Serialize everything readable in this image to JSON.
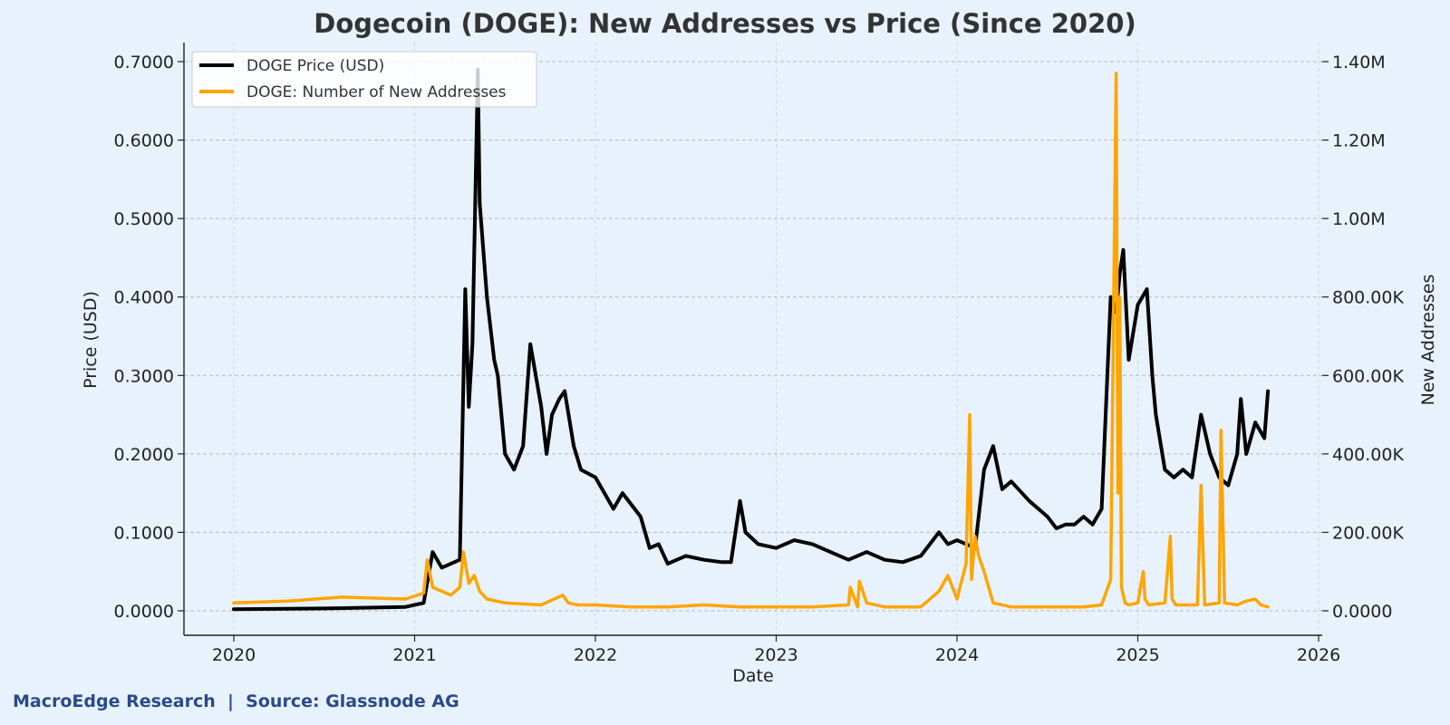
{
  "footer": "MacroEdge Research  |  Source: Glassnode AG",
  "colors": {
    "background": "#e8f2fd",
    "price": "#000000",
    "addresses": "#ffa500",
    "footer": "#2b4a8a"
  },
  "chart_data": {
    "type": "line",
    "title": "Dogecoin (DOGE): New Addresses vs Price (Since 2020)",
    "xlabel": "Date",
    "ylabel": "Price (USD)",
    "ylabel_right": "New Addresses",
    "xlim": [
      2020,
      2026
    ],
    "ylim": [
      0,
      0.7
    ],
    "ylim_right": [
      0,
      1400000
    ],
    "x_ticks": [
      "2020",
      "2021",
      "2022",
      "2023",
      "2024",
      "2025",
      "2026"
    ],
    "y_ticks": [
      "0.0000",
      "0.1000",
      "0.2000",
      "0.3000",
      "0.4000",
      "0.5000",
      "0.6000",
      "0.7000"
    ],
    "y_right_ticks": [
      "0.0000",
      "200.00K",
      "400.00K",
      "600.00K",
      "800.00K",
      "1.00M",
      "1.20M",
      "1.40M"
    ],
    "grid": true,
    "legend_position": "top-left",
    "series": [
      {
        "name": "DOGE Price (USD)",
        "axis": "left",
        "color": "#000000",
        "x": [
          2020.0,
          2020.5,
          2020.95,
          2021.05,
          2021.1,
          2021.15,
          2021.2,
          2021.25,
          2021.28,
          2021.3,
          2021.32,
          2021.35,
          2021.36,
          2021.4,
          2021.44,
          2021.46,
          2021.5,
          2021.55,
          2021.6,
          2021.64,
          2021.7,
          2021.73,
          2021.76,
          2021.8,
          2021.83,
          2021.88,
          2021.92,
          2022.0,
          2022.1,
          2022.15,
          2022.25,
          2022.3,
          2022.35,
          2022.4,
          2022.5,
          2022.6,
          2022.7,
          2022.75,
          2022.8,
          2022.83,
          2022.9,
          2023.0,
          2023.1,
          2023.2,
          2023.3,
          2023.4,
          2023.5,
          2023.6,
          2023.7,
          2023.8,
          2023.9,
          2023.95,
          2024.0,
          2024.1,
          2024.15,
          2024.2,
          2024.25,
          2024.3,
          2024.4,
          2024.5,
          2024.55,
          2024.6,
          2024.65,
          2024.7,
          2024.75,
          2024.8,
          2024.85,
          2024.88,
          2024.9,
          2024.92,
          2024.95,
          2025.0,
          2025.05,
          2025.08,
          2025.1,
          2025.15,
          2025.2,
          2025.25,
          2025.3,
          2025.35,
          2025.4,
          2025.45,
          2025.5,
          2025.55,
          2025.57,
          2025.6,
          2025.65,
          2025.7,
          2025.72
        ],
        "y": [
          0.002,
          0.003,
          0.005,
          0.01,
          0.075,
          0.055,
          0.06,
          0.065,
          0.41,
          0.26,
          0.34,
          0.69,
          0.52,
          0.4,
          0.32,
          0.3,
          0.2,
          0.18,
          0.21,
          0.34,
          0.26,
          0.2,
          0.25,
          0.27,
          0.28,
          0.21,
          0.18,
          0.17,
          0.13,
          0.15,
          0.12,
          0.08,
          0.085,
          0.06,
          0.07,
          0.065,
          0.062,
          0.062,
          0.14,
          0.1,
          0.085,
          0.08,
          0.09,
          0.085,
          0.075,
          0.065,
          0.075,
          0.065,
          0.062,
          0.07,
          0.1,
          0.085,
          0.09,
          0.08,
          0.18,
          0.21,
          0.155,
          0.165,
          0.14,
          0.12,
          0.105,
          0.11,
          0.11,
          0.12,
          0.11,
          0.13,
          0.4,
          0.38,
          0.43,
          0.46,
          0.32,
          0.39,
          0.41,
          0.3,
          0.25,
          0.18,
          0.17,
          0.18,
          0.17,
          0.25,
          0.2,
          0.17,
          0.16,
          0.2,
          0.27,
          0.2,
          0.24,
          0.22,
          0.28
        ]
      },
      {
        "name": "DOGE: Number of New Addresses",
        "axis": "right",
        "color": "#ffa500",
        "x": [
          2020.0,
          2020.3,
          2020.6,
          2020.95,
          2021.05,
          2021.07,
          2021.1,
          2021.15,
          2021.2,
          2021.25,
          2021.27,
          2021.3,
          2021.33,
          2021.36,
          2021.4,
          2021.5,
          2021.7,
          2021.82,
          2021.85,
          2021.9,
          2022.0,
          2022.2,
          2022.4,
          2022.6,
          2022.8,
          2023.0,
          2023.2,
          2023.4,
          2023.41,
          2023.45,
          2023.46,
          2023.5,
          2023.6,
          2023.8,
          2023.9,
          2023.95,
          2024.0,
          2024.05,
          2024.07,
          2024.08,
          2024.1,
          2024.12,
          2024.15,
          2024.2,
          2024.3,
          2024.5,
          2024.7,
          2024.8,
          2024.85,
          2024.88,
          2024.89,
          2024.9,
          2024.91,
          2024.93,
          2024.95,
          2025.0,
          2025.03,
          2025.04,
          2025.06,
          2025.15,
          2025.18,
          2025.19,
          2025.21,
          2025.33,
          2025.35,
          2025.37,
          2025.45,
          2025.46,
          2025.48,
          2025.55,
          2025.6,
          2025.65,
          2025.68,
          2025.72
        ],
        "y": [
          20000,
          25000,
          35000,
          30000,
          45000,
          130000,
          60000,
          50000,
          40000,
          60000,
          150000,
          70000,
          90000,
          50000,
          30000,
          20000,
          15000,
          40000,
          20000,
          15000,
          15000,
          10000,
          10000,
          15000,
          10000,
          10000,
          10000,
          15000,
          60000,
          10000,
          75000,
          20000,
          10000,
          10000,
          50000,
          90000,
          30000,
          120000,
          500000,
          80000,
          190000,
          140000,
          100000,
          20000,
          10000,
          10000,
          10000,
          15000,
          80000,
          1370000,
          300000,
          800000,
          60000,
          20000,
          15000,
          20000,
          100000,
          30000,
          15000,
          20000,
          190000,
          30000,
          15000,
          15000,
          320000,
          15000,
          20000,
          460000,
          20000,
          15000,
          25000,
          30000,
          15000,
          10000
        ]
      }
    ]
  }
}
